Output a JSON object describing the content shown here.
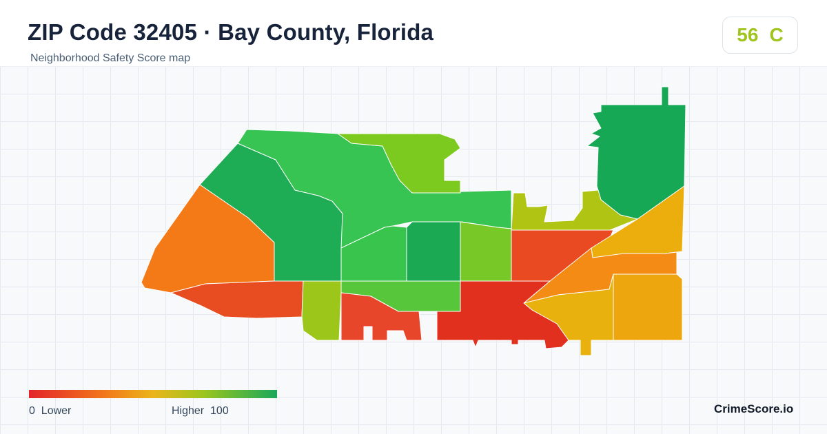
{
  "header": {
    "title": "ZIP Code 32405 · Bay County, Florida",
    "subtitle": "Neighborhood Safety Score map"
  },
  "score": {
    "value": "56",
    "grade": "C",
    "color": "#9fc41d"
  },
  "legend": {
    "low_value": "0",
    "low_label": "Lower",
    "high_label": "Higher",
    "high_value": "100",
    "colors": [
      "#e3252a",
      "#f2761b",
      "#eab51a",
      "#9dc51c",
      "#1aa85a"
    ]
  },
  "brand": "CrimeScore.io",
  "map": {
    "regions": [
      {
        "name": "west-upper",
        "fill": "#f47a18"
      },
      {
        "name": "northwest",
        "fill": "#1eac55"
      },
      {
        "name": "north-central",
        "fill": "#37c452"
      },
      {
        "name": "north-inlet",
        "fill": "#7cc920"
      },
      {
        "name": "northeast-peninsula",
        "fill": "#16a854"
      },
      {
        "name": "east-yellowgreen",
        "fill": "#b0c414"
      },
      {
        "name": "central-inner",
        "fill": "#39c44e"
      },
      {
        "name": "central-dark",
        "fill": "#1ba954"
      },
      {
        "name": "central-east-green",
        "fill": "#78c927"
      },
      {
        "name": "east-red",
        "fill": "#ea4a22"
      },
      {
        "name": "east-strip",
        "fill": "#ebae0d"
      },
      {
        "name": "east-orange",
        "fill": "#f48b14"
      },
      {
        "name": "southeast-orange",
        "fill": "#eea60e"
      },
      {
        "name": "southeast-yellow",
        "fill": "#e8b10d"
      },
      {
        "name": "southwest-strip",
        "fill": "#e84d22"
      },
      {
        "name": "south-center-green",
        "fill": "#58c63a"
      },
      {
        "name": "south-yellowgreen",
        "fill": "#9cc619"
      },
      {
        "name": "south-red",
        "fill": "#e8462a"
      },
      {
        "name": "south-east-red",
        "fill": "#e2301f"
      }
    ]
  }
}
